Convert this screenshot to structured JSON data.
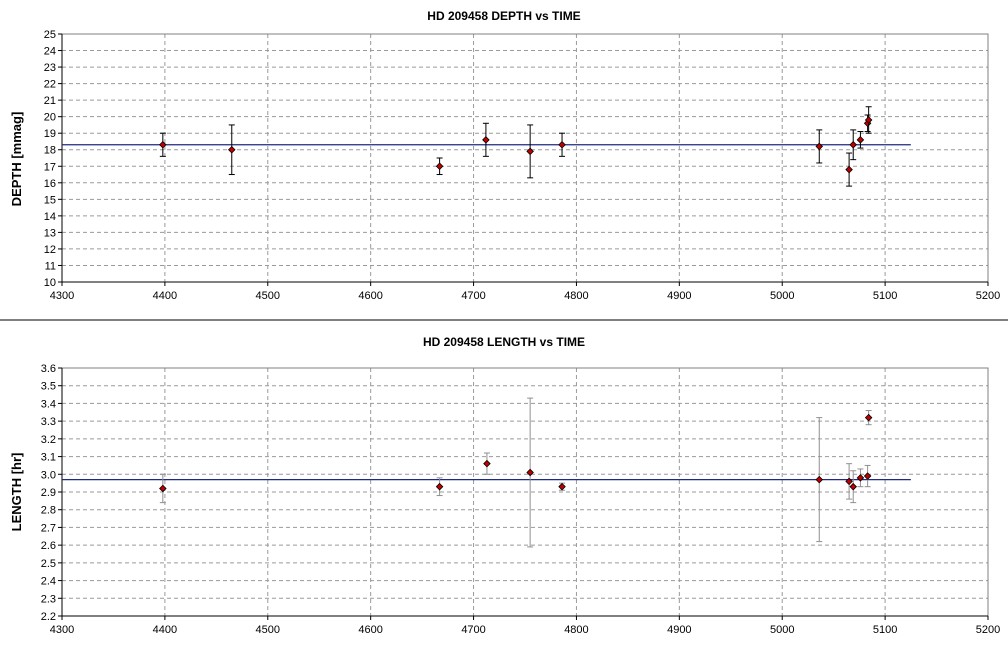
{
  "chart_data": [
    {
      "type": "scatter",
      "title": "HD 209458 DEPTH vs TIME",
      "xlabel": "",
      "ylabel": "DEPTH [mmag]",
      "xlim": [
        4300,
        5200
      ],
      "ylim": [
        10,
        25
      ],
      "x_ticks": [
        4300,
        4400,
        4500,
        4600,
        4700,
        4800,
        4900,
        5000,
        5100,
        5200
      ],
      "y_ticks": [
        10,
        11,
        12,
        13,
        14,
        15,
        16,
        17,
        18,
        19,
        20,
        21,
        22,
        23,
        24,
        25
      ],
      "grid": true,
      "reference_line": {
        "y": 18.3,
        "x_range": [
          4300,
          5125
        ],
        "color": "#1f2a80"
      },
      "error_bar_color": "#000000",
      "marker_color": "#c00000",
      "points": [
        {
          "x": 4398,
          "y": 18.3,
          "err": 0.7
        },
        {
          "x": 4465,
          "y": 18.0,
          "err": 1.5
        },
        {
          "x": 4667,
          "y": 17.0,
          "err": 0.5
        },
        {
          "x": 4712,
          "y": 18.6,
          "err": 1.0
        },
        {
          "x": 4755,
          "y": 17.9,
          "err": 1.6
        },
        {
          "x": 4786,
          "y": 18.3,
          "err": 0.7
        },
        {
          "x": 5036,
          "y": 18.2,
          "err": 1.0
        },
        {
          "x": 5065,
          "y": 16.8,
          "err": 1.0
        },
        {
          "x": 5069,
          "y": 18.3,
          "err": 0.9
        },
        {
          "x": 5076,
          "y": 18.6,
          "err": 0.5
        },
        {
          "x": 5083,
          "y": 19.6,
          "err": 0.5
        },
        {
          "x": 5084,
          "y": 19.8,
          "err": 0.8
        }
      ]
    },
    {
      "type": "scatter",
      "title": "HD 209458 LENGTH vs TIME",
      "xlabel": "",
      "ylabel": "LENGTH [hr]",
      "xlim": [
        4300,
        5200
      ],
      "ylim": [
        2.2,
        3.6
      ],
      "x_ticks": [
        4300,
        4400,
        4500,
        4600,
        4700,
        4800,
        4900,
        5000,
        5100,
        5200
      ],
      "y_ticks": [
        2.2,
        2.3,
        2.4,
        2.5,
        2.6,
        2.7,
        2.8,
        2.9,
        3.0,
        3.1,
        3.2,
        3.3,
        3.4,
        3.5,
        3.6
      ],
      "y_tick_labels": [
        "2.2",
        "2.3",
        "2.4",
        "2.5",
        "2.6",
        "2.7",
        "2.8",
        "2.9",
        "3.0",
        "3.1",
        "3.2",
        "3.3",
        "3.4",
        "3.5",
        "3.6"
      ],
      "grid": true,
      "reference_line": {
        "y": 2.97,
        "x_range": [
          4300,
          5125
        ],
        "color": "#1f2a80"
      },
      "error_bar_color": "#909090",
      "marker_color": "#c00000",
      "points": [
        {
          "x": 4398,
          "y": 2.92,
          "err": 0.08
        },
        {
          "x": 4667,
          "y": 2.93,
          "err": 0.05
        },
        {
          "x": 4713,
          "y": 3.06,
          "err": 0.06
        },
        {
          "x": 4755,
          "y": 3.01,
          "err": 0.42
        },
        {
          "x": 4786,
          "y": 2.93,
          "err": 0.02
        },
        {
          "x": 5036,
          "y": 2.97,
          "err": 0.35
        },
        {
          "x": 5065,
          "y": 2.96,
          "err": 0.1
        },
        {
          "x": 5069,
          "y": 2.93,
          "err": 0.09
        },
        {
          "x": 5076,
          "y": 2.98,
          "err": 0.05
        },
        {
          "x": 5083,
          "y": 2.99,
          "err": 0.06
        },
        {
          "x": 5084,
          "y": 3.32,
          "err": 0.04
        }
      ]
    }
  ]
}
